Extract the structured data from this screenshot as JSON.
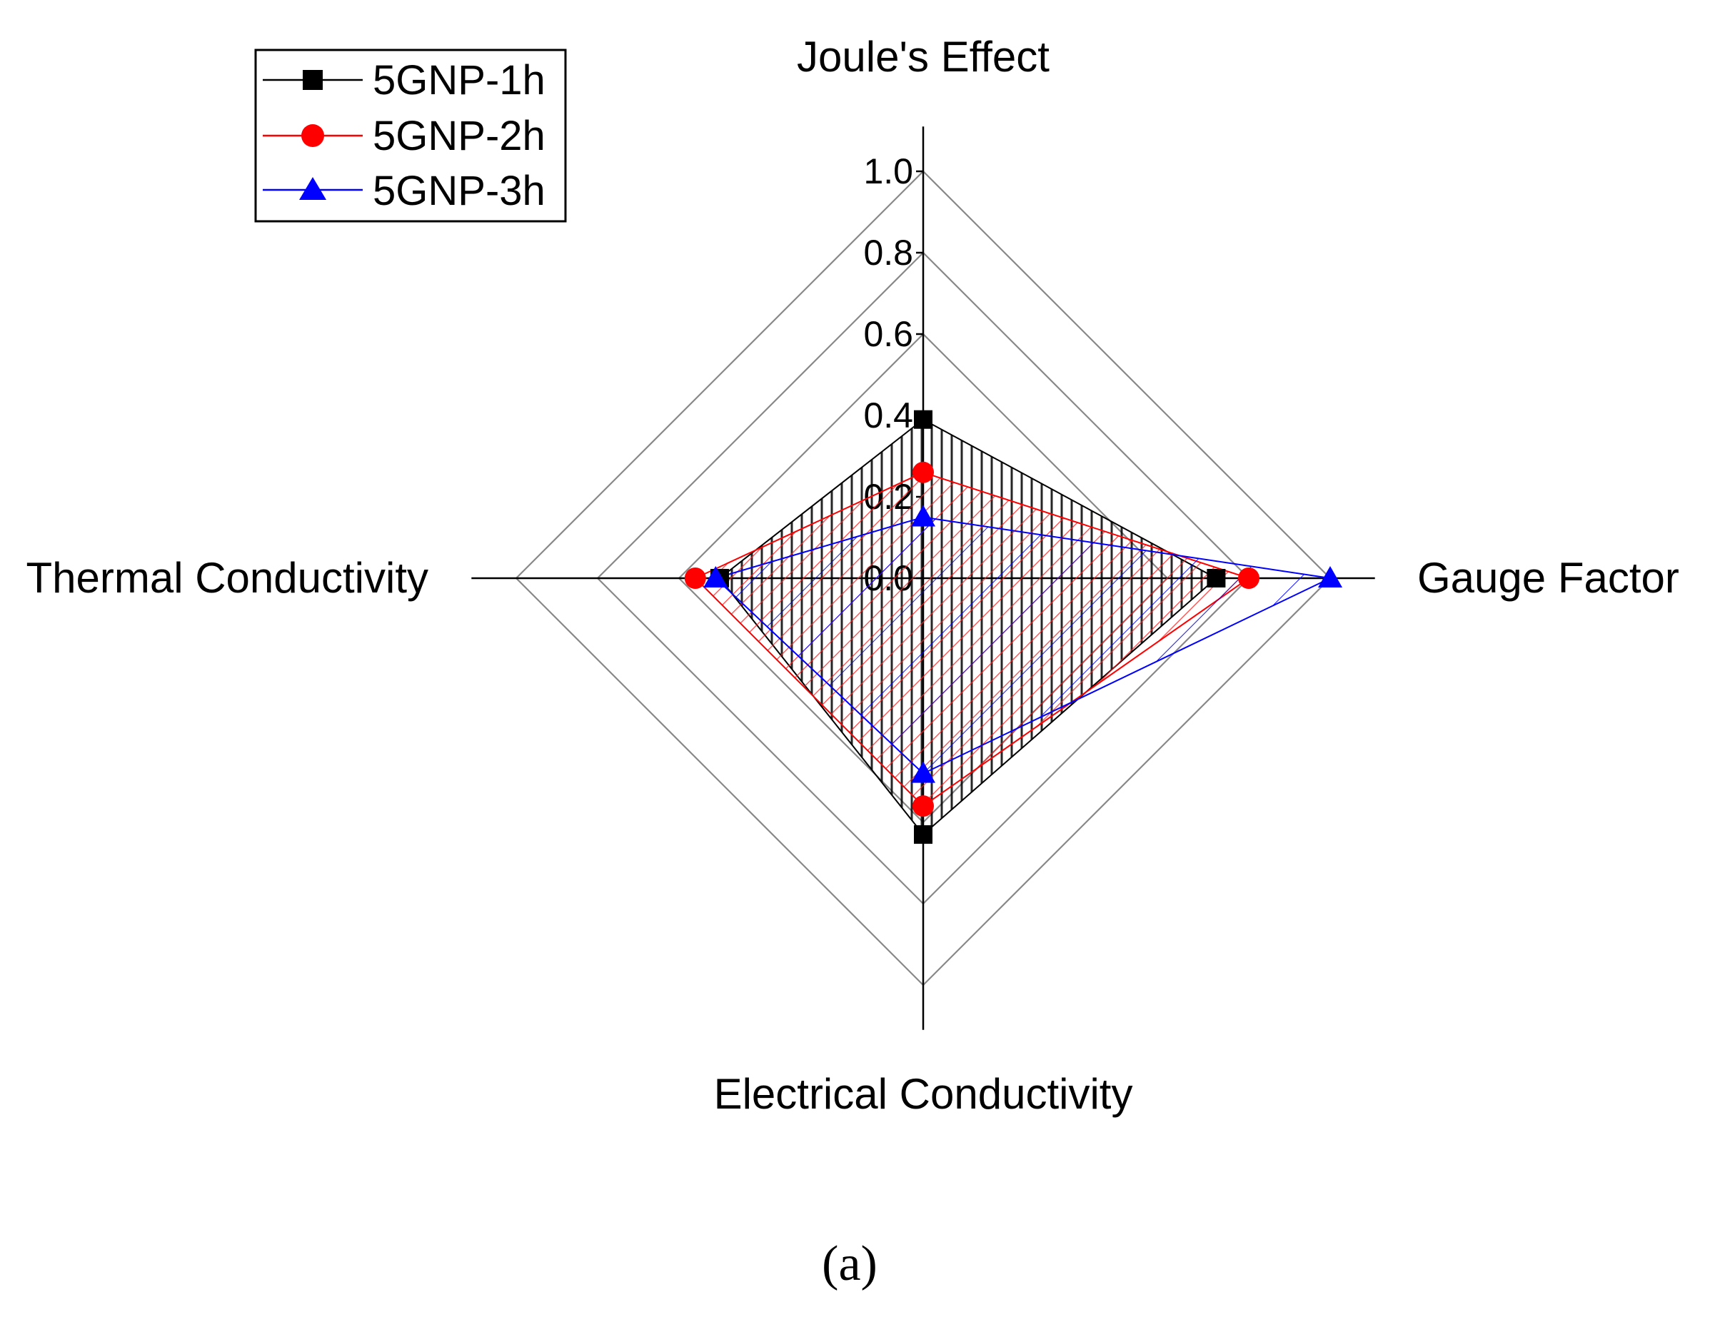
{
  "chart_data": {
    "type": "radar",
    "axes": [
      "Joule's Effect",
      "Gauge Factor",
      "Electrical Conductivity",
      "Thermal Conductivity"
    ],
    "rlim": [
      0,
      1.0
    ],
    "ticks": [
      "0.0",
      "0.2",
      "0.4",
      "0.6",
      "0.8",
      "1.0"
    ],
    "tick_values": [
      0,
      0.2,
      0.4,
      0.6,
      0.8,
      1.0
    ],
    "grid_rings": [
      0.6,
      0.8,
      1.0
    ],
    "series": [
      {
        "name": "5GNP-1h",
        "values": [
          0.39,
          0.72,
          0.63,
          0.5
        ],
        "color": "#000000",
        "marker": "square"
      },
      {
        "name": "5GNP-2h",
        "values": [
          0.26,
          0.8,
          0.56,
          0.56
        ],
        "color": "#ff0000",
        "marker": "circle"
      },
      {
        "name": "5GNP-3h",
        "values": [
          0.15,
          1.0,
          0.48,
          0.51
        ],
        "color": "#0000ff",
        "marker": "triangle"
      }
    ],
    "legend_position": "top-left",
    "caption": "(a)"
  }
}
